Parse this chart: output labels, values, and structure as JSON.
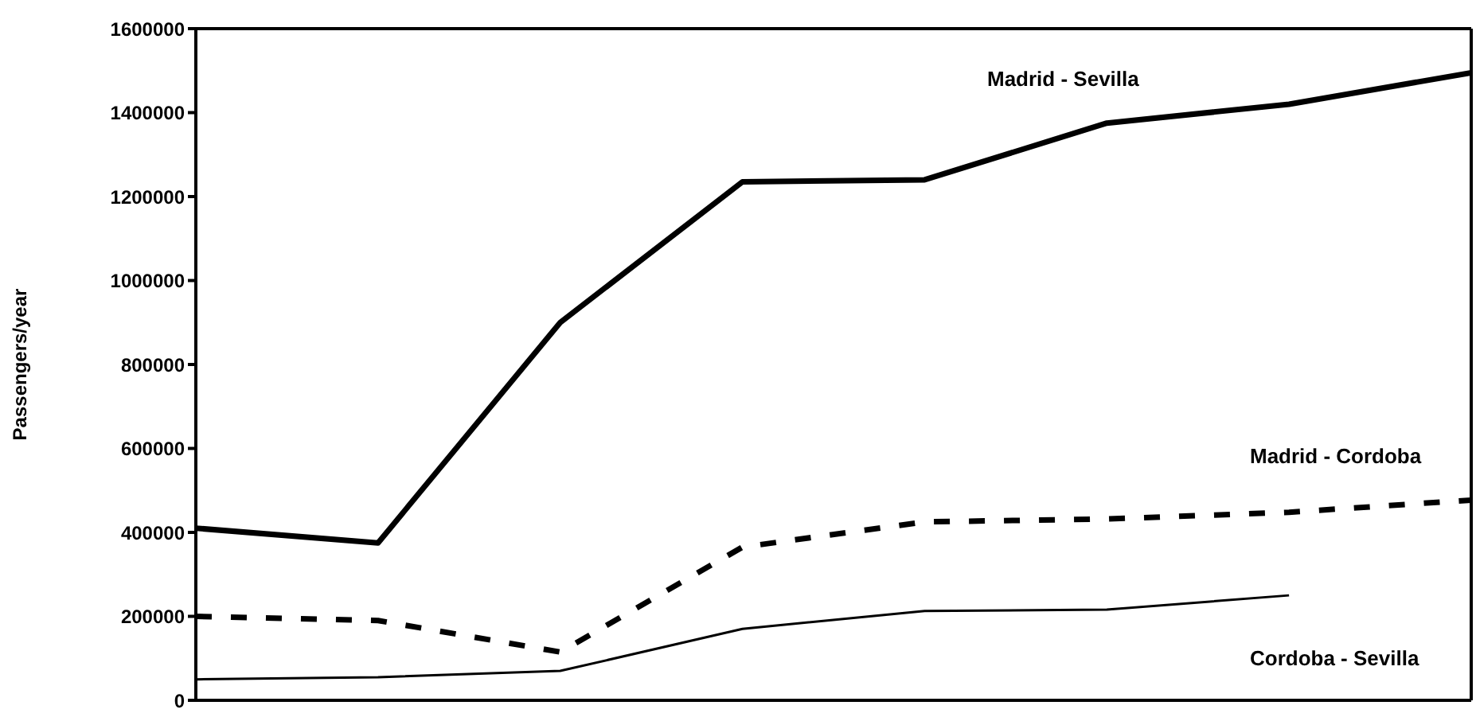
{
  "chart_data": {
    "type": "line",
    "ylabel": "Passengers/year",
    "categories": [
      null,
      null,
      null,
      null,
      null,
      null,
      null,
      null
    ],
    "series": [
      {
        "name": "Madrid - Sevilla",
        "color": "#000000",
        "line_style": "solid",
        "values": [
          410000,
          375000,
          900000,
          1235000,
          1240000,
          1375000,
          1420000,
          1495000
        ]
      },
      {
        "name": "Madrid - Cordoba",
        "color": "#000000",
        "line_style": "dashed",
        "values": [
          200000,
          190000,
          115000,
          365000,
          425000,
          432000,
          448000,
          477000
        ]
      },
      {
        "name": "Cordoba - Sevilla",
        "color": "#000000",
        "line_style": "solid",
        "values": [
          50000,
          55000,
          70000,
          170000,
          213000,
          216000,
          250000,
          null
        ]
      }
    ],
    "ylim": [
      0,
      1600000
    ],
    "yticks": [
      0,
      200000,
      400000,
      600000,
      800000,
      1000000,
      1200000,
      1400000,
      1600000
    ],
    "tick_labels": "y",
    "grid": false,
    "legend": false,
    "marker": "none"
  }
}
